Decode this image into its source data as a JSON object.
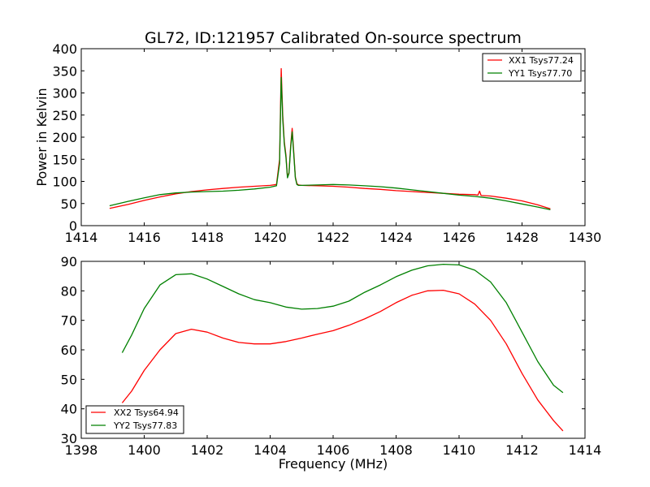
{
  "chart_data": [
    {
      "type": "line",
      "title": "GL72, ID:121957 Calibrated On-source spectrum",
      "xlabel": "",
      "ylabel": "Power in Kelvin",
      "xlim": [
        1414,
        1430
      ],
      "ylim": [
        0,
        400
      ],
      "xticks": [
        1414,
        1416,
        1418,
        1420,
        1422,
        1424,
        1426,
        1428,
        1430
      ],
      "yticks": [
        0,
        50,
        100,
        150,
        200,
        250,
        300,
        350,
        400
      ],
      "grid": false,
      "legend_position": "top-right",
      "series": [
        {
          "name": "XX1 Tsys77.24",
          "color": "#ff0000",
          "x": [
            1414.9,
            1415.5,
            1416.0,
            1416.5,
            1417.0,
            1417.5,
            1418.0,
            1418.5,
            1419.0,
            1419.5,
            1420.0,
            1420.2,
            1420.3,
            1420.35,
            1420.4,
            1420.45,
            1420.5,
            1420.55,
            1420.6,
            1420.65,
            1420.7,
            1420.75,
            1420.8,
            1420.85,
            1420.9,
            1421.0,
            1421.5,
            1422.0,
            1422.5,
            1423.0,
            1423.5,
            1424.0,
            1424.5,
            1425.0,
            1425.5,
            1426.0,
            1426.5,
            1426.6,
            1426.65,
            1426.7,
            1427.0,
            1427.5,
            1428.0,
            1428.5,
            1428.9
          ],
          "y": [
            39,
            48,
            57,
            65,
            72,
            77,
            81,
            84,
            87,
            89,
            91,
            93,
            150,
            355,
            250,
            190,
            160,
            110,
            120,
            180,
            220,
            165,
            110,
            95,
            92,
            91,
            90,
            89,
            87,
            84,
            82,
            79,
            77,
            75,
            73,
            71,
            70,
            69,
            78,
            68,
            67,
            62,
            56,
            47,
            38
          ]
        },
        {
          "name": "YY1 Tsys77.70",
          "color": "#008000",
          "x": [
            1414.9,
            1415.5,
            1416.0,
            1416.5,
            1417.0,
            1417.5,
            1418.0,
            1418.5,
            1419.0,
            1419.5,
            1420.0,
            1420.2,
            1420.3,
            1420.35,
            1420.4,
            1420.45,
            1420.5,
            1420.55,
            1420.6,
            1420.65,
            1420.7,
            1420.75,
            1420.8,
            1420.85,
            1420.9,
            1421.0,
            1421.5,
            1422.0,
            1422.5,
            1423.0,
            1423.5,
            1424.0,
            1424.5,
            1425.0,
            1425.5,
            1426.0,
            1426.5,
            1427.0,
            1427.5,
            1428.0,
            1428.5,
            1428.9
          ],
          "y": [
            45,
            55,
            63,
            70,
            74,
            76,
            77,
            78,
            80,
            83,
            87,
            90,
            140,
            335,
            240,
            185,
            155,
            108,
            118,
            175,
            212,
            160,
            108,
            93,
            91,
            91,
            92,
            93,
            92,
            90,
            88,
            85,
            81,
            77,
            73,
            69,
            66,
            62,
            56,
            49,
            42,
            36
          ]
        }
      ]
    },
    {
      "type": "line",
      "title": "",
      "xlabel": "Frequency (MHz)",
      "ylabel": "",
      "xlim": [
        1398,
        1414
      ],
      "ylim": [
        30,
        90
      ],
      "xticks": [
        1398,
        1400,
        1402,
        1404,
        1406,
        1408,
        1410,
        1412,
        1414
      ],
      "yticks": [
        30,
        40,
        50,
        60,
        70,
        80,
        90
      ],
      "grid": false,
      "legend_position": "bottom-left",
      "series": [
        {
          "name": "XX2 Tsys64.94",
          "color": "#ff0000",
          "x": [
            1399.3,
            1399.6,
            1400.0,
            1400.5,
            1401.0,
            1401.5,
            1402.0,
            1402.5,
            1403.0,
            1403.5,
            1404.0,
            1404.5,
            1405.0,
            1405.5,
            1406.0,
            1406.5,
            1407.0,
            1407.5,
            1408.0,
            1408.5,
            1409.0,
            1409.5,
            1410.0,
            1410.5,
            1411.0,
            1411.5,
            1412.0,
            1412.5,
            1413.0,
            1413.3
          ],
          "y": [
            42,
            46,
            53,
            60,
            65.5,
            67,
            66,
            64,
            62.5,
            62,
            62,
            62.8,
            64,
            65.3,
            66.5,
            68.3,
            70.5,
            73,
            76,
            78.5,
            80,
            80.2,
            79,
            75.5,
            70,
            62,
            52,
            43,
            36,
            32.5
          ]
        },
        {
          "name": "YY2 Tsys77.83",
          "color": "#008000",
          "x": [
            1399.3,
            1399.6,
            1400.0,
            1400.5,
            1401.0,
            1401.5,
            1402.0,
            1402.5,
            1403.0,
            1403.5,
            1404.0,
            1404.5,
            1405.0,
            1405.5,
            1406.0,
            1406.5,
            1407.0,
            1407.5,
            1408.0,
            1408.5,
            1409.0,
            1409.5,
            1410.0,
            1410.5,
            1411.0,
            1411.5,
            1412.0,
            1412.5,
            1413.0,
            1413.3
          ],
          "y": [
            59,
            65,
            74,
            82,
            85.5,
            85.8,
            84,
            81.5,
            79,
            77,
            76,
            74.5,
            73.8,
            74,
            74.8,
            76.5,
            79.5,
            82,
            84.8,
            87,
            88.5,
            89,
            88.8,
            87,
            83,
            76,
            66,
            56,
            48,
            45.5
          ]
        }
      ]
    }
  ]
}
